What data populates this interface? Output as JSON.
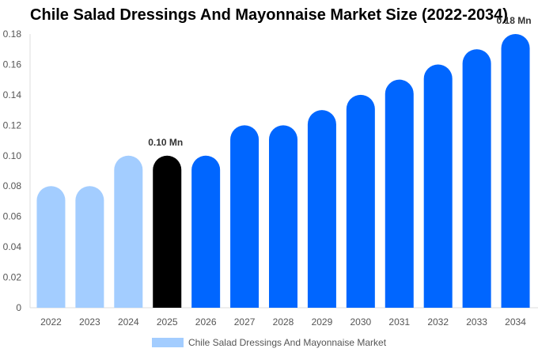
{
  "chart_data": {
    "type": "bar",
    "title": "Chile Salad Dressings And Mayonnaise Market Size (2022-2034)",
    "categories": [
      "2022",
      "2023",
      "2024",
      "2025",
      "2026",
      "2027",
      "2028",
      "2029",
      "2030",
      "2031",
      "2032",
      "2033",
      "2034"
    ],
    "series": [
      {
        "name": "Chile Salad Dressings And Mayonnaise Market",
        "values": [
          0.08,
          0.08,
          0.1,
          0.1,
          0.1,
          0.12,
          0.12,
          0.13,
          0.14,
          0.15,
          0.16,
          0.17,
          0.18
        ]
      }
    ],
    "ylim": [
      0,
      0.18
    ],
    "yticks": [
      "0",
      "0.02",
      "0.04",
      "0.06",
      "0.08",
      "0.10",
      "0.12",
      "0.14",
      "0.16",
      "0.18"
    ],
    "data_labels": {
      "3": "0.10 Mn",
      "12": "0.18 Mn"
    },
    "bar_colors": [
      "#a3cdff",
      "#a3cdff",
      "#a3cdff",
      "#000000",
      "#0066ff",
      "#0066ff",
      "#0066ff",
      "#0066ff",
      "#0066ff",
      "#0066ff",
      "#0066ff",
      "#0066ff",
      "#0066ff"
    ],
    "legend_color": "#a3cdff",
    "legend_placement": "bottom",
    "grid": false
  }
}
